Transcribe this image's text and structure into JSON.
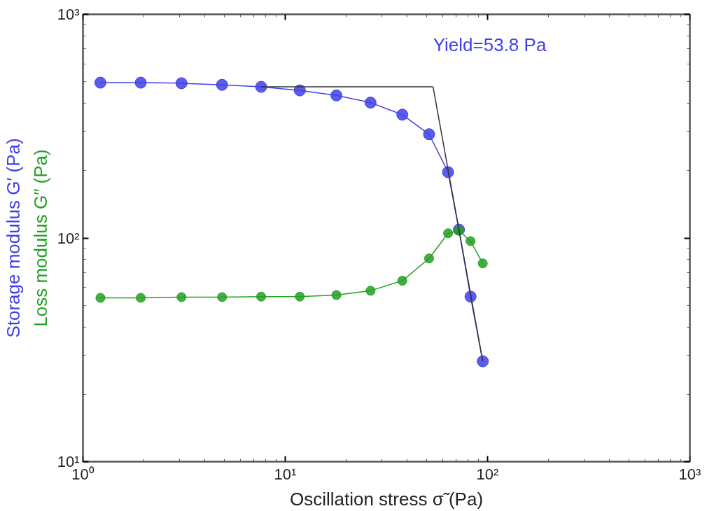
{
  "chart_data": {
    "type": "line",
    "xlabel": "Oscillation stress σ̃ (Pa)",
    "ylabel": [
      "Storage modulus G′ (Pa)",
      "Loss modulus G″ (Pa)"
    ],
    "annotations": [
      {
        "text": "Yield=53.8 Pa",
        "x": 53.8,
        "y": 474
      }
    ],
    "log": "xy",
    "grid": false,
    "marker": "circle",
    "line_style": "solid",
    "xlim": [
      1,
      1000
    ],
    "ylim": [
      10,
      1000
    ],
    "xticks": [
      {
        "value": 1,
        "label": "10⁰"
      },
      {
        "value": 10,
        "label": "10¹"
      },
      {
        "value": 100,
        "label": "10²"
      },
      {
        "value": 1000,
        "label": "10³"
      }
    ],
    "yticks": [
      {
        "value": 10,
        "label": "10¹"
      },
      {
        "value": 100,
        "label": "10²"
      },
      {
        "value": 1000,
        "label": "10³"
      }
    ],
    "x": [
      1.22,
      1.93,
      3.07,
      4.87,
      7.6,
      11.8,
      17.9,
      26.4,
      37.9,
      51.4,
      63.8,
      72.2,
      82.4,
      94.7
    ],
    "series": [
      {
        "color": "#4040e8",
        "values": [
          495,
          495,
          492,
          484,
          474,
          457,
          434,
          403,
          356,
          291,
          197,
          109,
          54.7,
          28.1
        ]
      },
      {
        "color": "#22a022",
        "values": [
          54.0,
          54.0,
          54.4,
          54.4,
          54.7,
          54.7,
          55.6,
          58.1,
          64.4,
          81.0,
          105,
          108,
          96.8,
          77.0
        ]
      },
      {
        "color": "#333333",
        "marker": "none",
        "x": [
          7.6,
          53.8
        ],
        "values": [
          474,
          474
        ]
      },
      {
        "color": "#333333",
        "marker": "none",
        "x": [
          53.8,
          94.7
        ],
        "values": [
          474,
          28.1
        ]
      }
    ]
  }
}
